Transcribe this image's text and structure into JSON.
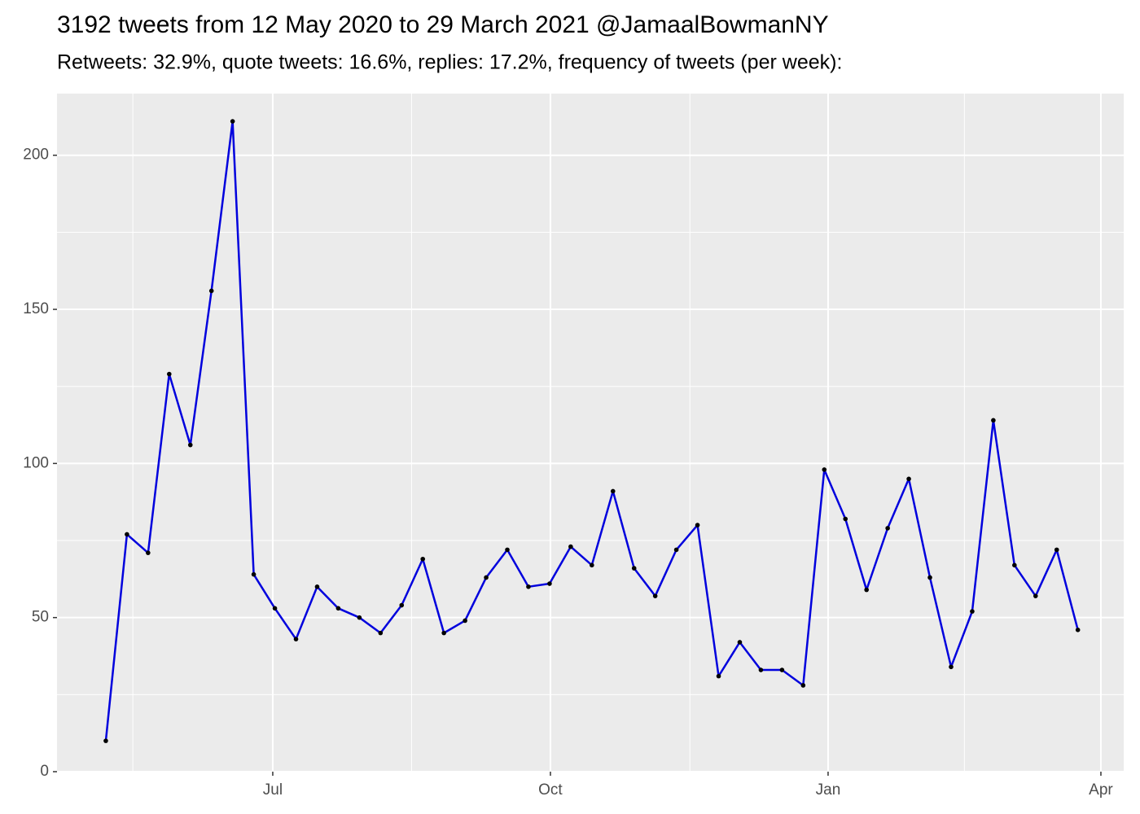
{
  "chart_data": {
    "type": "line",
    "title": "3192 tweets from 12 May 2020 to 29 March 2021 @JamaalBowmanNY",
    "subtitle": "Retweets: 32.9%, quote tweets: 16.6%, replies: 17.2%, frequency of tweets (per week):",
    "x": [
      0,
      1,
      2,
      3,
      4,
      5,
      6,
      7,
      8,
      9,
      10,
      11,
      12,
      13,
      14,
      15,
      16,
      17,
      18,
      19,
      20,
      21,
      22,
      23,
      24,
      25,
      26,
      27,
      28,
      29,
      30,
      31,
      32,
      33,
      34,
      35,
      36,
      37,
      38,
      39,
      40,
      41,
      42,
      43,
      44,
      45,
      46
    ],
    "values": [
      10,
      77,
      71,
      129,
      106,
      156,
      211,
      64,
      53,
      43,
      60,
      53,
      50,
      45,
      54,
      69,
      45,
      49,
      63,
      72,
      60,
      61,
      73,
      67,
      91,
      66,
      57,
      72,
      80,
      31,
      42,
      33,
      33,
      28,
      98,
      82,
      59,
      79,
      95,
      63,
      34,
      52,
      114,
      67,
      57,
      72,
      46
    ],
    "color": "#0000dd",
    "point_color": "#000000",
    "xlim": [
      -2.31,
      48.17
    ],
    "xticks": [
      {
        "value": 7.9,
        "label": "Jul"
      },
      {
        "value": 21.04,
        "label": "Oct"
      },
      {
        "value": 34.18,
        "label": "Jan"
      },
      {
        "value": 47.09,
        "label": "Apr"
      }
    ],
    "x_minor_ticks": [
      1.28,
      14.47,
      27.64,
      40.63
    ],
    "ylim": [
      0,
      220
    ],
    "yticks": [
      0,
      50,
      100,
      150,
      200
    ],
    "y_minor_ticks": [
      25,
      75,
      125,
      175
    ],
    "grid": true
  }
}
